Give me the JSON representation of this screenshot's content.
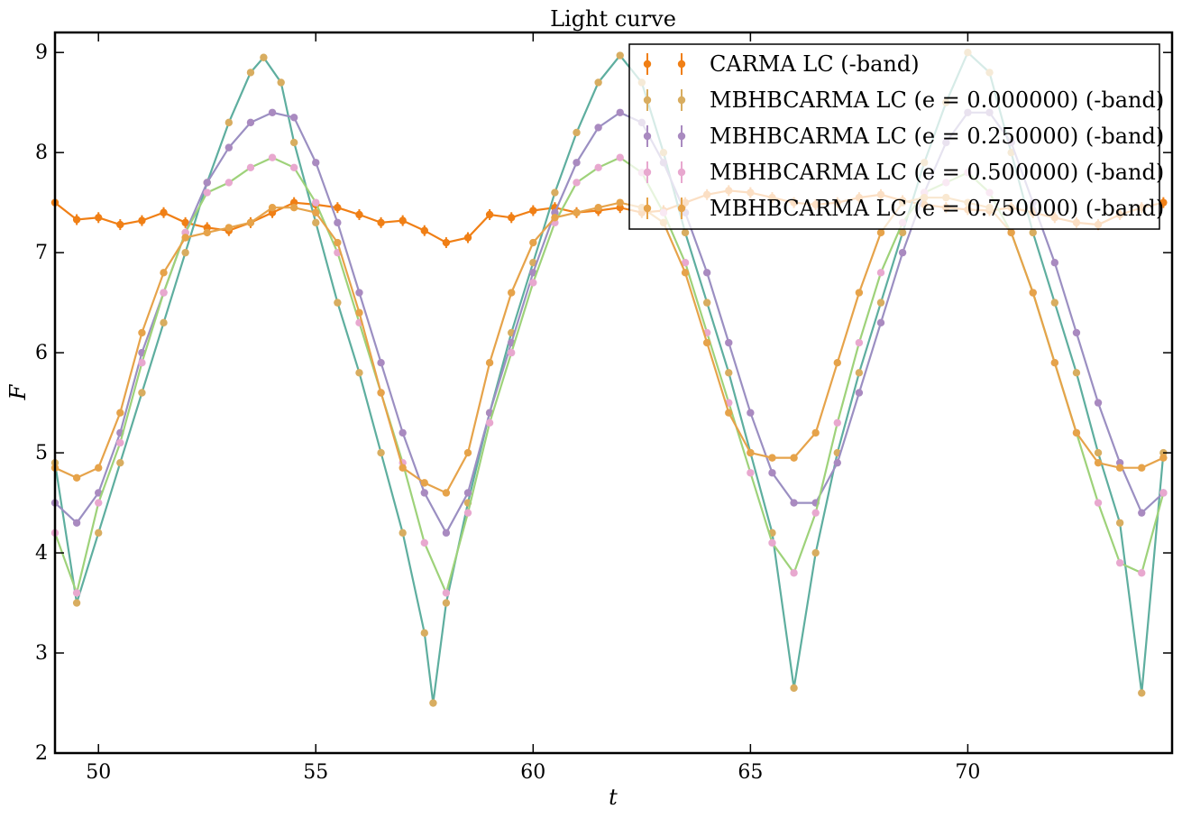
{
  "chart_data": {
    "type": "line",
    "title": "Light curve",
    "xlabel": "t",
    "ylabel": "F",
    "xlim": [
      49.0,
      74.7
    ],
    "ylim": [
      2.0,
      9.2
    ],
    "xticks": [
      50,
      55,
      60,
      65,
      70
    ],
    "yticks": [
      2,
      3,
      4,
      5,
      6,
      7,
      8,
      9
    ],
    "xtick_labels": [
      "50",
      "55",
      "60",
      "65",
      "70"
    ],
    "ytick_labels": [
      "2",
      "3",
      "4",
      "5",
      "6",
      "7",
      "8",
      "9"
    ],
    "legend_position": "top-right",
    "series": [
      {
        "name": "CARMA LC (-band)",
        "color": "#f07f15",
        "marker": "errorbar-point",
        "x": [
          49.0,
          49.5,
          50.0,
          50.5,
          51.0,
          51.5,
          52.0,
          52.5,
          53.0,
          53.5,
          54.0,
          54.5,
          55.0,
          55.5,
          56.0,
          56.5,
          57.0,
          57.5,
          58.0,
          58.5,
          59.0,
          59.5,
          60.0,
          60.5,
          61.0,
          61.5,
          62.0,
          62.5,
          63.0,
          63.5,
          64.0,
          64.5,
          65.0,
          65.5,
          66.0,
          66.5,
          67.0,
          67.5,
          68.0,
          68.5,
          69.0,
          69.5,
          70.0,
          70.5,
          71.0,
          71.5,
          72.0,
          72.5,
          73.0,
          73.5,
          74.0,
          74.5
        ],
        "y": [
          7.5,
          7.33,
          7.35,
          7.28,
          7.32,
          7.4,
          7.3,
          7.25,
          7.22,
          7.3,
          7.4,
          7.5,
          7.48,
          7.45,
          7.38,
          7.3,
          7.32,
          7.22,
          7.1,
          7.15,
          7.38,
          7.35,
          7.42,
          7.45,
          7.4,
          7.42,
          7.45,
          7.4,
          7.42,
          7.5,
          7.58,
          7.62,
          7.6,
          7.55,
          7.5,
          7.48,
          7.5,
          7.55,
          7.58,
          7.52,
          7.48,
          7.45,
          7.43,
          7.42,
          7.45,
          7.4,
          7.35,
          7.3,
          7.28,
          7.38,
          7.45,
          7.5
        ]
      },
      {
        "name": "MBHBCARMA LC (e = 0.000000) (-band)",
        "color": "#d8ad60",
        "line_color": "#5eae9f",
        "marker": "point",
        "x": [
          49.0,
          49.5,
          50.0,
          50.5,
          51.0,
          51.5,
          52.0,
          52.5,
          53.0,
          53.5,
          53.8,
          54.2,
          54.5,
          55.0,
          55.5,
          56.0,
          56.5,
          57.0,
          57.5,
          57.7,
          58.0,
          58.5,
          59.0,
          59.5,
          60.0,
          60.5,
          61.0,
          61.5,
          62.0,
          62.5,
          63.0,
          63.5,
          64.0,
          64.5,
          65.0,
          65.5,
          66.0,
          66.5,
          67.0,
          67.5,
          68.0,
          68.5,
          69.0,
          69.5,
          70.0,
          70.5,
          71.0,
          71.5,
          72.0,
          72.5,
          73.0,
          73.5,
          74.0,
          74.5
        ],
        "y": [
          4.9,
          3.5,
          4.2,
          4.9,
          5.6,
          6.3,
          7.0,
          7.7,
          8.3,
          8.8,
          8.95,
          8.7,
          8.1,
          7.3,
          6.5,
          5.8,
          5.0,
          4.2,
          3.2,
          2.5,
          3.5,
          4.5,
          5.4,
          6.2,
          6.9,
          7.6,
          8.2,
          8.7,
          8.97,
          8.7,
          8.0,
          7.2,
          6.5,
          5.8,
          5.0,
          4.2,
          2.65,
          4.0,
          5.0,
          5.8,
          6.5,
          7.2,
          7.9,
          8.5,
          9.0,
          8.8,
          8.0,
          7.2,
          6.5,
          5.8,
          5.0,
          4.3,
          2.6,
          5.0
        ]
      },
      {
        "name": "MBHBCARMA LC (e = 0.250000) (-band)",
        "color": "#a98ac0",
        "line_color": "#9b8fc2",
        "marker": "point",
        "x": [
          49.0,
          49.5,
          50.0,
          50.5,
          51.0,
          51.5,
          52.0,
          52.5,
          53.0,
          53.5,
          54.0,
          54.5,
          55.0,
          55.5,
          56.0,
          56.5,
          57.0,
          57.5,
          58.0,
          58.5,
          59.0,
          59.5,
          60.0,
          60.5,
          61.0,
          61.5,
          62.0,
          62.5,
          63.0,
          63.5,
          64.0,
          64.5,
          65.0,
          65.5,
          66.0,
          66.5,
          67.0,
          67.5,
          68.0,
          68.5,
          69.0,
          69.5,
          70.0,
          70.5,
          71.0,
          71.5,
          72.0,
          72.5,
          73.0,
          73.5,
          74.0,
          74.5
        ],
        "y": [
          4.5,
          4.3,
          4.6,
          5.2,
          6.0,
          6.6,
          7.2,
          7.7,
          8.05,
          8.3,
          8.4,
          8.35,
          7.9,
          7.3,
          6.6,
          5.9,
          5.2,
          4.6,
          4.2,
          4.6,
          5.4,
          6.1,
          6.8,
          7.4,
          7.9,
          8.25,
          8.4,
          8.3,
          7.9,
          7.4,
          6.8,
          6.1,
          5.4,
          4.8,
          4.5,
          4.5,
          4.9,
          5.6,
          6.3,
          7.0,
          7.6,
          8.1,
          8.4,
          8.4,
          8.1,
          7.5,
          6.9,
          6.2,
          5.5,
          4.9,
          4.4,
          4.6
        ]
      },
      {
        "name": "MBHBCARMA LC (e = 0.500000) (-band)",
        "color": "#e8a8cf",
        "line_color": "#9ed27a",
        "marker": "point",
        "x": [
          49.0,
          49.5,
          50.0,
          50.5,
          51.0,
          51.5,
          52.0,
          52.5,
          53.0,
          53.5,
          54.0,
          54.5,
          55.0,
          55.5,
          56.0,
          56.5,
          57.0,
          57.5,
          58.0,
          58.5,
          59.0,
          59.5,
          60.0,
          60.5,
          61.0,
          61.5,
          62.0,
          62.5,
          63.0,
          63.5,
          64.0,
          64.5,
          65.0,
          65.5,
          66.0,
          66.5,
          67.0,
          67.5,
          68.0,
          68.5,
          69.0,
          69.5,
          70.0,
          70.5,
          71.0,
          71.5,
          72.0,
          72.5,
          73.0,
          73.5,
          74.0,
          74.5
        ],
        "y": [
          4.2,
          3.6,
          4.5,
          5.1,
          5.9,
          6.6,
          7.2,
          7.6,
          7.7,
          7.85,
          7.95,
          7.85,
          7.5,
          7.0,
          6.3,
          5.6,
          4.9,
          4.1,
          3.6,
          4.4,
          5.3,
          6.0,
          6.7,
          7.3,
          7.7,
          7.85,
          7.95,
          7.8,
          7.4,
          6.9,
          6.2,
          5.5,
          4.8,
          4.1,
          3.8,
          4.4,
          5.3,
          6.1,
          6.8,
          7.3,
          7.6,
          7.7,
          7.8,
          7.6,
          7.2,
          6.6,
          5.9,
          5.2,
          4.5,
          3.9,
          3.8,
          4.6
        ]
      },
      {
        "name": "MBHBCARMA LC (e = 0.750000) (-band)",
        "color": "#e6a34a",
        "marker": "point",
        "x": [
          49.0,
          49.5,
          50.0,
          50.5,
          51.0,
          51.5,
          52.0,
          52.5,
          53.0,
          53.5,
          54.0,
          54.5,
          55.0,
          55.5,
          56.0,
          56.5,
          57.0,
          57.5,
          58.0,
          58.5,
          59.0,
          59.5,
          60.0,
          60.5,
          61.0,
          61.5,
          62.0,
          62.5,
          63.0,
          63.5,
          64.0,
          64.5,
          65.0,
          65.5,
          66.0,
          66.5,
          67.0,
          67.5,
          68.0,
          68.5,
          69.0,
          69.5,
          70.0,
          70.5,
          71.0,
          71.5,
          72.0,
          72.5,
          73.0,
          73.5,
          74.0,
          74.5
        ],
        "y": [
          4.85,
          4.75,
          4.85,
          5.4,
          6.2,
          6.8,
          7.15,
          7.2,
          7.25,
          7.3,
          7.45,
          7.45,
          7.4,
          7.1,
          6.4,
          5.6,
          4.85,
          4.7,
          4.6,
          5.0,
          5.9,
          6.6,
          7.1,
          7.35,
          7.4,
          7.45,
          7.5,
          7.45,
          7.3,
          6.8,
          6.1,
          5.4,
          5.0,
          4.95,
          4.95,
          5.2,
          5.9,
          6.6,
          7.2,
          7.5,
          7.55,
          7.55,
          7.5,
          7.45,
          7.2,
          6.6,
          5.9,
          5.2,
          4.9,
          4.85,
          4.85,
          4.95
        ]
      }
    ]
  }
}
